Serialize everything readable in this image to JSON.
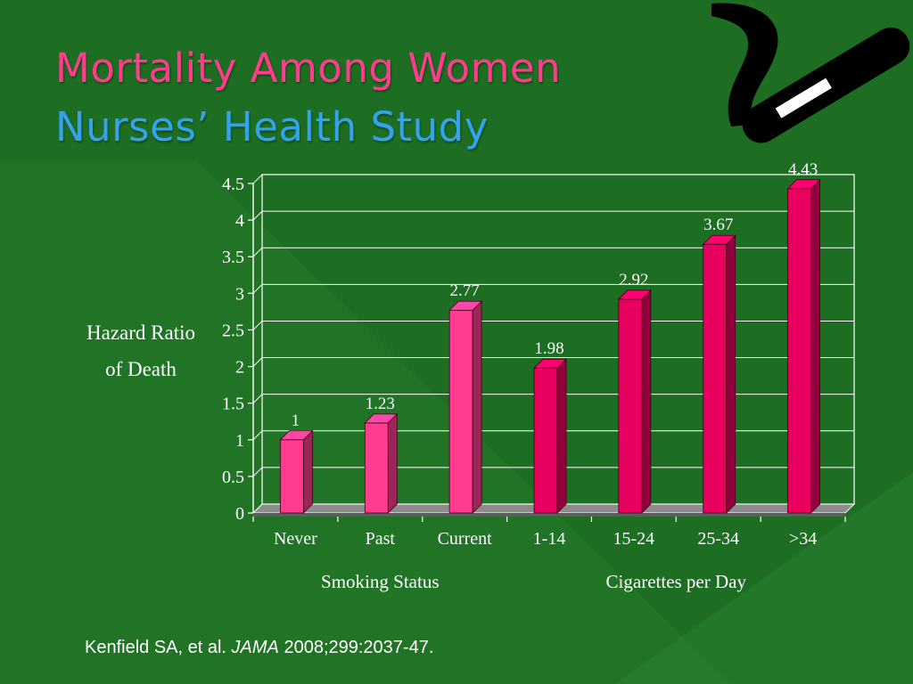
{
  "slide": {
    "title_line1": "Mortality Among Women",
    "title_line2": "Nurses’ Health Study",
    "citation_authors": "Kenfield SA, et al. ",
    "citation_journal": "JAMA",
    "citation_details": " 2008;299:2037-47.",
    "logo_icon": "no-smoking-cigarette-icon"
  },
  "colors": {
    "background": "#1d6e22",
    "title_line1": "#ff3c8e",
    "title_line2": "#33a3ee",
    "bar_smoking_status": "#ff3c8e",
    "bar_cigarettes_per_day": "#e8005f"
  },
  "chart_data": {
    "type": "bar",
    "categories": [
      "Never",
      "Past",
      "Current",
      "1-14",
      "15-24",
      "25-34",
      ">34"
    ],
    "values": [
      1,
      1.23,
      2.77,
      1.98,
      2.92,
      3.67,
      4.43
    ],
    "data_labels": [
      "1",
      "1.23",
      "2.77",
      "1.98",
      "2.92",
      "3.67",
      "4.43"
    ],
    "groups": [
      {
        "name": "Smoking Status",
        "categories": [
          "Never",
          "Past",
          "Current"
        ]
      },
      {
        "name": "Cigarettes per Day",
        "categories": [
          "1-14",
          "15-24",
          "25-34",
          ">34"
        ]
      }
    ],
    "ylabel_lines": [
      "Hazard Ratio",
      "of Death"
    ],
    "ylim": [
      0,
      4.5
    ],
    "y_ticks": [
      0,
      0.5,
      1,
      1.5,
      2,
      2.5,
      3,
      3.5,
      4,
      4.5
    ],
    "y_tick_labels": [
      "0",
      "0.5",
      "1",
      "1.5",
      "2",
      "2.5",
      "3",
      "3.5",
      "4",
      "4.5"
    ],
    "grid": true,
    "legend": "none",
    "style": "3d-bars"
  }
}
